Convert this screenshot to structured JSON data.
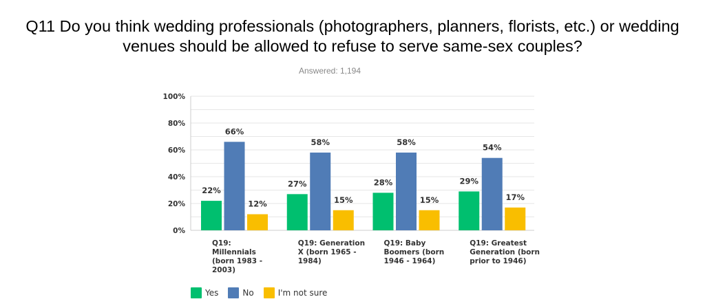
{
  "header": {
    "title_line1": "Q11 Do you think wedding professionals (photographers, planners, florists, etc.) or wedding",
    "title_line2": "venues should be allowed to refuse to serve same-sex couples?",
    "answered": "Answered: 1,194"
  },
  "chart_data": {
    "type": "bar",
    "title": "Q11 Do you think wedding professionals (photographers, planners, florists, etc.) or wedding venues should be allowed to refuse to serve same-sex couples?",
    "subtitle": "Answered: 1,194",
    "categories": [
      [
        "Q19:",
        "Millennials",
        "(born 1983 -",
        "2003)"
      ],
      [
        "Q19: Generation",
        "X (born 1965 -",
        "1984)"
      ],
      [
        "Q19: Baby",
        "Boomers (born",
        "1946 - 1964)"
      ],
      [
        "Q19: Greatest",
        "Generation (born",
        "prior to 1946)"
      ]
    ],
    "series": [
      {
        "name": "Yes",
        "color": "#00bf6f",
        "values": [
          22,
          27,
          28,
          29
        ]
      },
      {
        "name": "No",
        "color": "#507cb6",
        "values": [
          66,
          58,
          58,
          54
        ]
      },
      {
        "name": "I'm not sure",
        "color": "#f9be00",
        "values": [
          12,
          15,
          15,
          17
        ]
      }
    ],
    "ylim": [
      0,
      100
    ],
    "yticks": [
      "0%",
      "20%",
      "40%",
      "60%",
      "80%",
      "100%"
    ],
    "value_suffix": "%",
    "grid": true,
    "legend_position": "bottom-left"
  }
}
